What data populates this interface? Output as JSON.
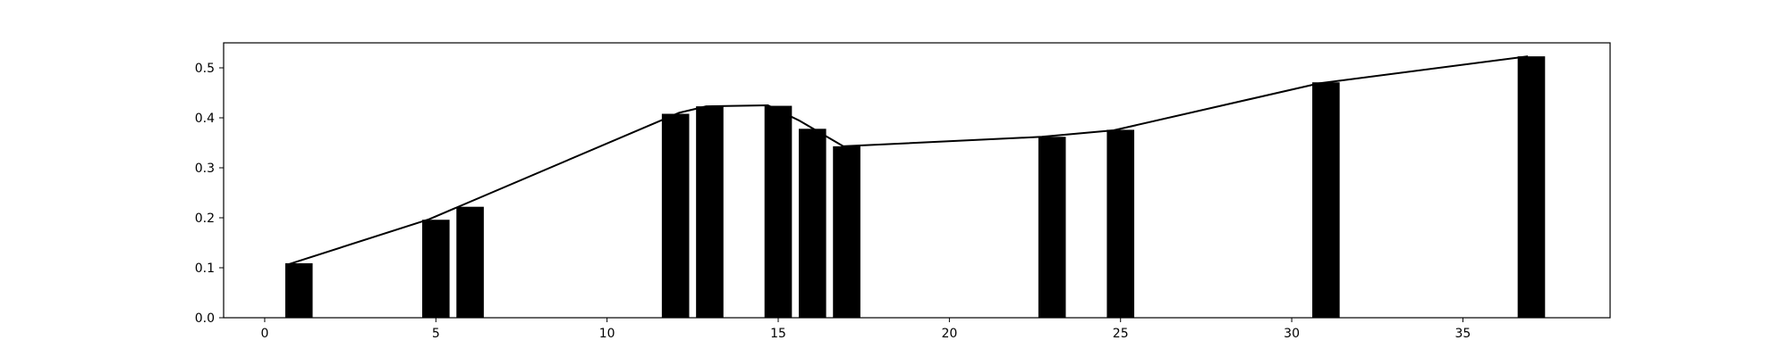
{
  "chart_data": {
    "type": "bar",
    "title": "",
    "xlabel": "",
    "ylabel": "",
    "xlim": [
      -1.2,
      39.3
    ],
    "ylim": [
      0,
      0.55
    ],
    "xticks": [
      0,
      5,
      10,
      15,
      20,
      25,
      30,
      35
    ],
    "yticks": [
      0.0,
      0.1,
      0.2,
      0.3,
      0.4,
      0.5
    ],
    "bar_width": 0.8,
    "grid": false,
    "legend": "none",
    "color": "#000000",
    "series": [
      {
        "type": "bar",
        "x": [
          1,
          5,
          6,
          12,
          13,
          15,
          16,
          17,
          23,
          25,
          31,
          37
        ],
        "values": [
          0.109,
          0.196,
          0.222,
          0.408,
          0.423,
          0.424,
          0.378,
          0.343,
          0.362,
          0.376,
          0.471,
          0.523
        ]
      },
      {
        "type": "line",
        "x": [
          0.7,
          4.8,
          12.1,
          12.9,
          14.7,
          15.6,
          16.9,
          22.7,
          24.8,
          30.8,
          36.9
        ],
        "values": [
          0.107,
          0.197,
          0.41,
          0.423,
          0.425,
          0.395,
          0.343,
          0.362,
          0.375,
          0.469,
          0.523
        ]
      }
    ]
  }
}
